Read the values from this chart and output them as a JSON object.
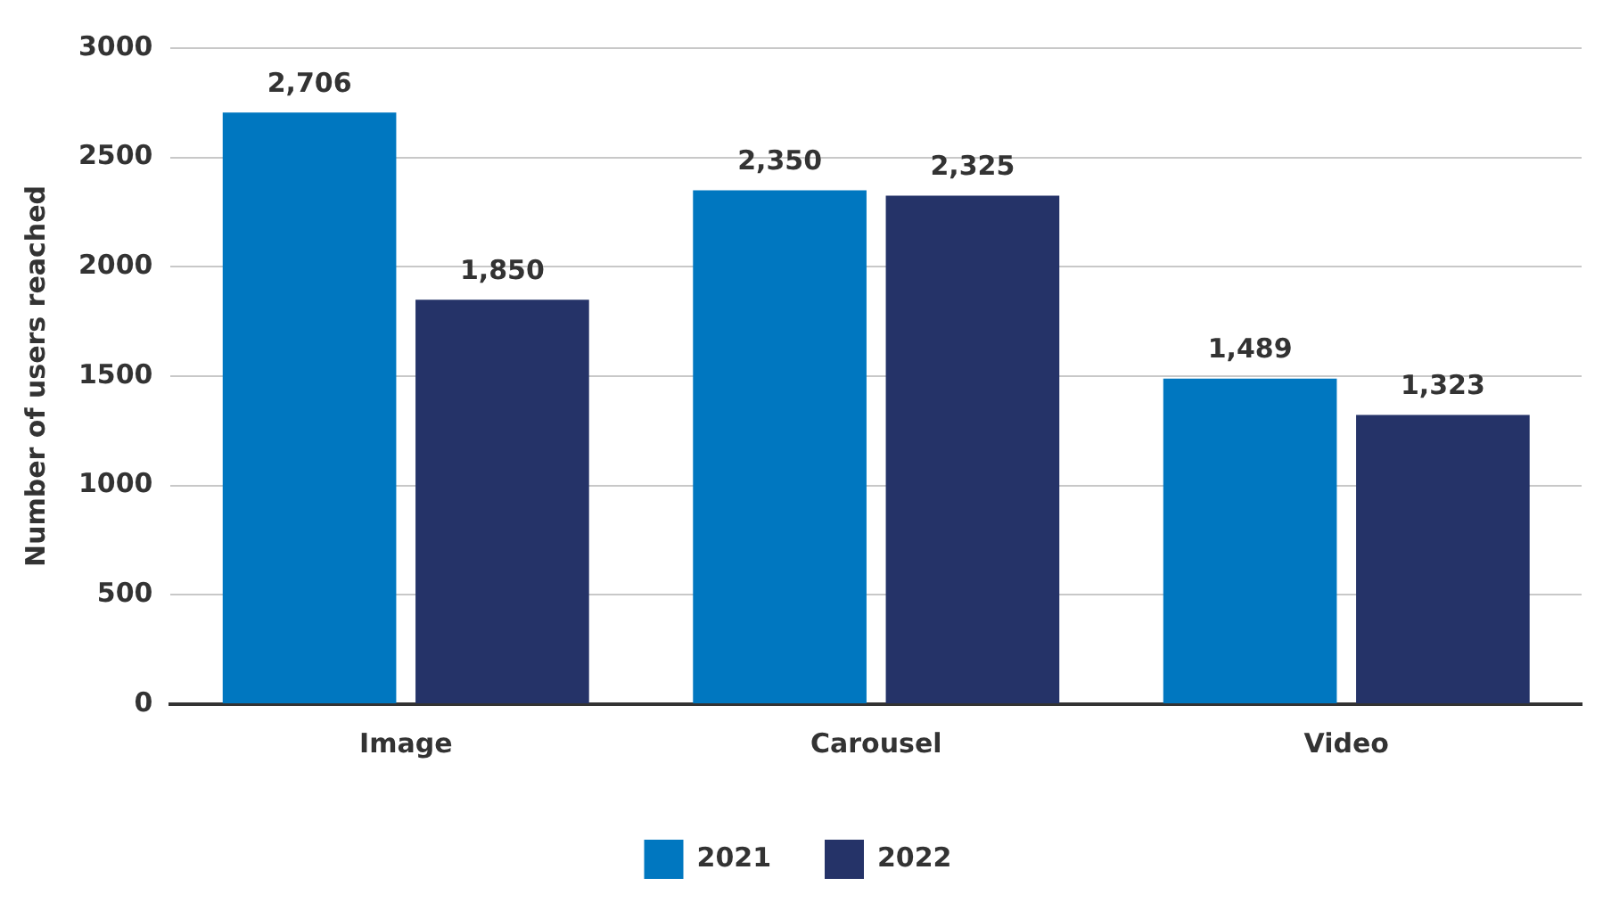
{
  "chart_data": {
    "type": "bar",
    "ylabel": "Number of users reached",
    "categories": [
      "Image",
      "Carousel",
      "Video"
    ],
    "series": [
      {
        "name": "2021",
        "color": "#0077c0",
        "values": [
          2706,
          2350,
          1489
        ],
        "value_labels": [
          "2,706",
          "2,350",
          "1,489"
        ]
      },
      {
        "name": "2022",
        "color": "#253368",
        "values": [
          1850,
          2325,
          1323
        ],
        "value_labels": [
          "1,850",
          "2,325",
          "1,323"
        ]
      }
    ],
    "ylim": [
      0,
      3000
    ],
    "yticks": [
      0,
      500,
      1000,
      1500,
      2000,
      2500,
      3000
    ],
    "grid": "y",
    "legend": "bottom"
  }
}
